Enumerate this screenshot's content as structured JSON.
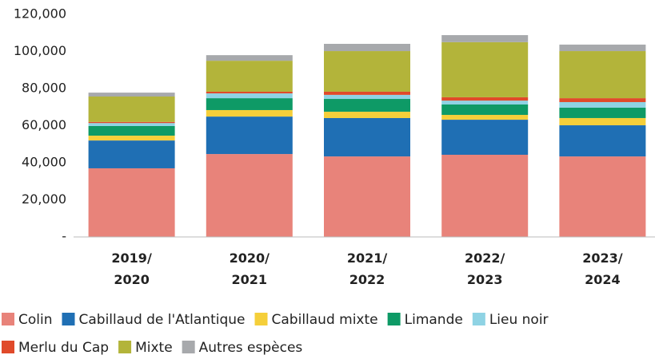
{
  "chart_data": {
    "type": "stacked_bar",
    "categories": [
      "2019/ 2020",
      "2020/ 2021",
      "2021/ 2022",
      "2022/ 2023",
      "2023/ 2024"
    ],
    "series": [
      {
        "name": "Colin",
        "color": "#e8837a",
        "values": [
          37000,
          44700,
          43400,
          44300,
          43400
        ]
      },
      {
        "name": "Cabillaud de l'Atlantique",
        "color": "#1f6fb4",
        "values": [
          15000,
          20200,
          20700,
          18900,
          16800
        ]
      },
      {
        "name": "Cabillaud mixte",
        "color": "#f5cf3a",
        "values": [
          2600,
          3500,
          3400,
          2600,
          3900
        ]
      },
      {
        "name": "Limande",
        "color": "#0e9a66",
        "values": [
          5200,
          6400,
          6900,
          5600,
          5600
        ]
      },
      {
        "name": "Lieu noir",
        "color": "#8fd3e4",
        "values": [
          1600,
          2600,
          2200,
          2100,
          3000
        ]
      },
      {
        "name": "Merlu du Cap",
        "color": "#e04a2a",
        "values": [
          600,
          900,
          1700,
          1800,
          2100
        ]
      },
      {
        "name": "Mixte",
        "color": "#b3b43a",
        "values": [
          13700,
          16700,
          21900,
          29700,
          25400
        ]
      },
      {
        "name": "Autres espèces",
        "color": "#a7a9ac",
        "values": [
          2100,
          3000,
          3900,
          3800,
          3500
        ]
      }
    ],
    "ylim": [
      0,
      120000
    ],
    "yticks": [
      {
        "value": 0,
        "label": "-"
      },
      {
        "value": 20000,
        "label": "20,000"
      },
      {
        "value": 40000,
        "label": "40,000"
      },
      {
        "value": 60000,
        "label": "60,000"
      },
      {
        "value": 80000,
        "label": "80,000"
      },
      {
        "value": 100000,
        "label": "100,000"
      },
      {
        "value": 120000,
        "label": "120,000"
      }
    ],
    "grid": false,
    "legend": "bottom"
  }
}
